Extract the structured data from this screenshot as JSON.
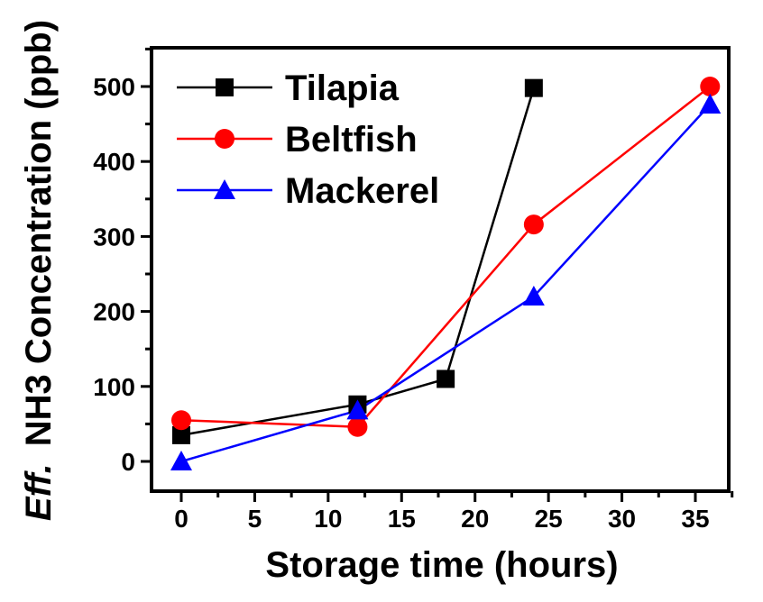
{
  "chart_data": {
    "type": "line",
    "title": "",
    "xlabel": "Storage time (hours)",
    "ylabel_italic": "Eff.",
    "ylabel": "NH3 Concentration (ppb)",
    "xlim": [
      -2,
      37.5
    ],
    "ylim": [
      -40,
      550
    ],
    "xticks": [
      0,
      5,
      10,
      15,
      20,
      25,
      30,
      35
    ],
    "yticks": [
      0,
      100,
      200,
      300,
      400,
      500
    ],
    "grid": false,
    "legend_position": "top-left",
    "series": [
      {
        "name": "Tilapia",
        "color": "#000000",
        "marker": "square",
        "x": [
          0,
          12,
          18,
          24
        ],
        "y": [
          35,
          76,
          110,
          498
        ]
      },
      {
        "name": "Beltfish",
        "color": "#ff0000",
        "marker": "circle",
        "x": [
          0,
          12,
          24,
          36
        ],
        "y": [
          55,
          46,
          316,
          500
        ]
      },
      {
        "name": "Mackerel",
        "color": "#0000ff",
        "marker": "triangle",
        "x": [
          0,
          12,
          24,
          36
        ],
        "y": [
          0,
          68,
          220,
          476
        ]
      }
    ]
  }
}
